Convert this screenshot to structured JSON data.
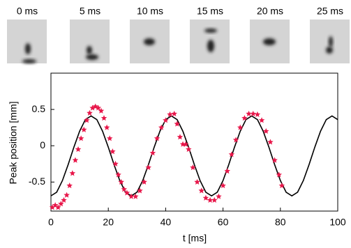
{
  "frames": [
    {
      "label": "0 ms"
    },
    {
      "label": "5 ms"
    },
    {
      "label": "10 ms"
    },
    {
      "label": "15 ms"
    },
    {
      "label": "20 ms"
    },
    {
      "label": "25 ms"
    }
  ],
  "chart_data": {
    "type": "scatter",
    "x_label": "t [ms]",
    "y_label": "Peak position [mm]",
    "xlim": [
      0,
      100
    ],
    "ylim": [
      -0.9,
      1.0
    ],
    "xticks": [
      0,
      20,
      40,
      60,
      80,
      100
    ],
    "yticks": [
      -0.5,
      0,
      0.5
    ],
    "series": [
      {
        "type": "line",
        "color": "#000000",
        "x": [
          0,
          2,
          4,
          6,
          8,
          10,
          12,
          14,
          16,
          18,
          20,
          22,
          24,
          26,
          28,
          30,
          32,
          34,
          36,
          38,
          40,
          42,
          44,
          46,
          48,
          50,
          52,
          54,
          56,
          58,
          60,
          62,
          64,
          66,
          68,
          70,
          72,
          74,
          76,
          78,
          80,
          82,
          84,
          86,
          88,
          90,
          92,
          94,
          96,
          98,
          100
        ],
        "values": [
          -0.69,
          -0.64,
          -0.48,
          -0.26,
          -0.02,
          0.2,
          0.36,
          0.41,
          0.36,
          0.2,
          -0.02,
          -0.26,
          -0.48,
          -0.64,
          -0.69,
          -0.64,
          -0.48,
          -0.26,
          -0.02,
          0.2,
          0.36,
          0.41,
          0.36,
          0.2,
          -0.02,
          -0.26,
          -0.48,
          -0.64,
          -0.69,
          -0.64,
          -0.48,
          -0.26,
          -0.02,
          0.2,
          0.36,
          0.41,
          0.36,
          0.2,
          -0.02,
          -0.26,
          -0.48,
          -0.64,
          -0.69,
          -0.64,
          -0.48,
          -0.26,
          -0.02,
          0.2,
          0.36,
          0.41,
          0.36
        ]
      },
      {
        "type": "scatter",
        "color": "#e8174a",
        "x": [
          0.5,
          1.5,
          2.5,
          3.5,
          4.5,
          5.5,
          6.5,
          7.5,
          8.5,
          9.5,
          10.5,
          11.5,
          12.5,
          13.5,
          14.5,
          15.5,
          16.5,
          17.5,
          18.5,
          19.5,
          20.5,
          21.5,
          22.5,
          23.5,
          24.5,
          25.5,
          26.5,
          28,
          29.5,
          31,
          32.5,
          34,
          35.5,
          37,
          38.5,
          40,
          41.5,
          43,
          44,
          45,
          46,
          47,
          48,
          49.5,
          51,
          52.5,
          54,
          55.5,
          57,
          58.5,
          60,
          61.5,
          63,
          64.5,
          66,
          67.5,
          69,
          70.5,
          72,
          73.5,
          75,
          76.5,
          78,
          79.5,
          80.5
        ],
        "values": [
          -0.85,
          -0.82,
          -0.85,
          -0.8,
          -0.75,
          -0.68,
          -0.55,
          -0.38,
          -0.2,
          -0.05,
          0.1,
          0.22,
          0.35,
          0.45,
          0.52,
          0.54,
          0.52,
          0.48,
          0.38,
          0.25,
          0.1,
          -0.08,
          -0.25,
          -0.4,
          -0.5,
          -0.6,
          -0.65,
          -0.7,
          -0.7,
          -0.62,
          -0.5,
          -0.3,
          -0.1,
          0.1,
          0.25,
          0.35,
          0.43,
          0.44,
          0.3,
          0.12,
          0.02,
          0.02,
          -0.05,
          -0.3,
          -0.5,
          -0.62,
          -0.72,
          -0.75,
          -0.75,
          -0.7,
          -0.55,
          -0.35,
          -0.12,
          0.08,
          0.25,
          0.38,
          0.44,
          0.44,
          0.43,
          0.35,
          0.2,
          0.05,
          -0.2,
          -0.4,
          -0.55
        ]
      }
    ]
  }
}
